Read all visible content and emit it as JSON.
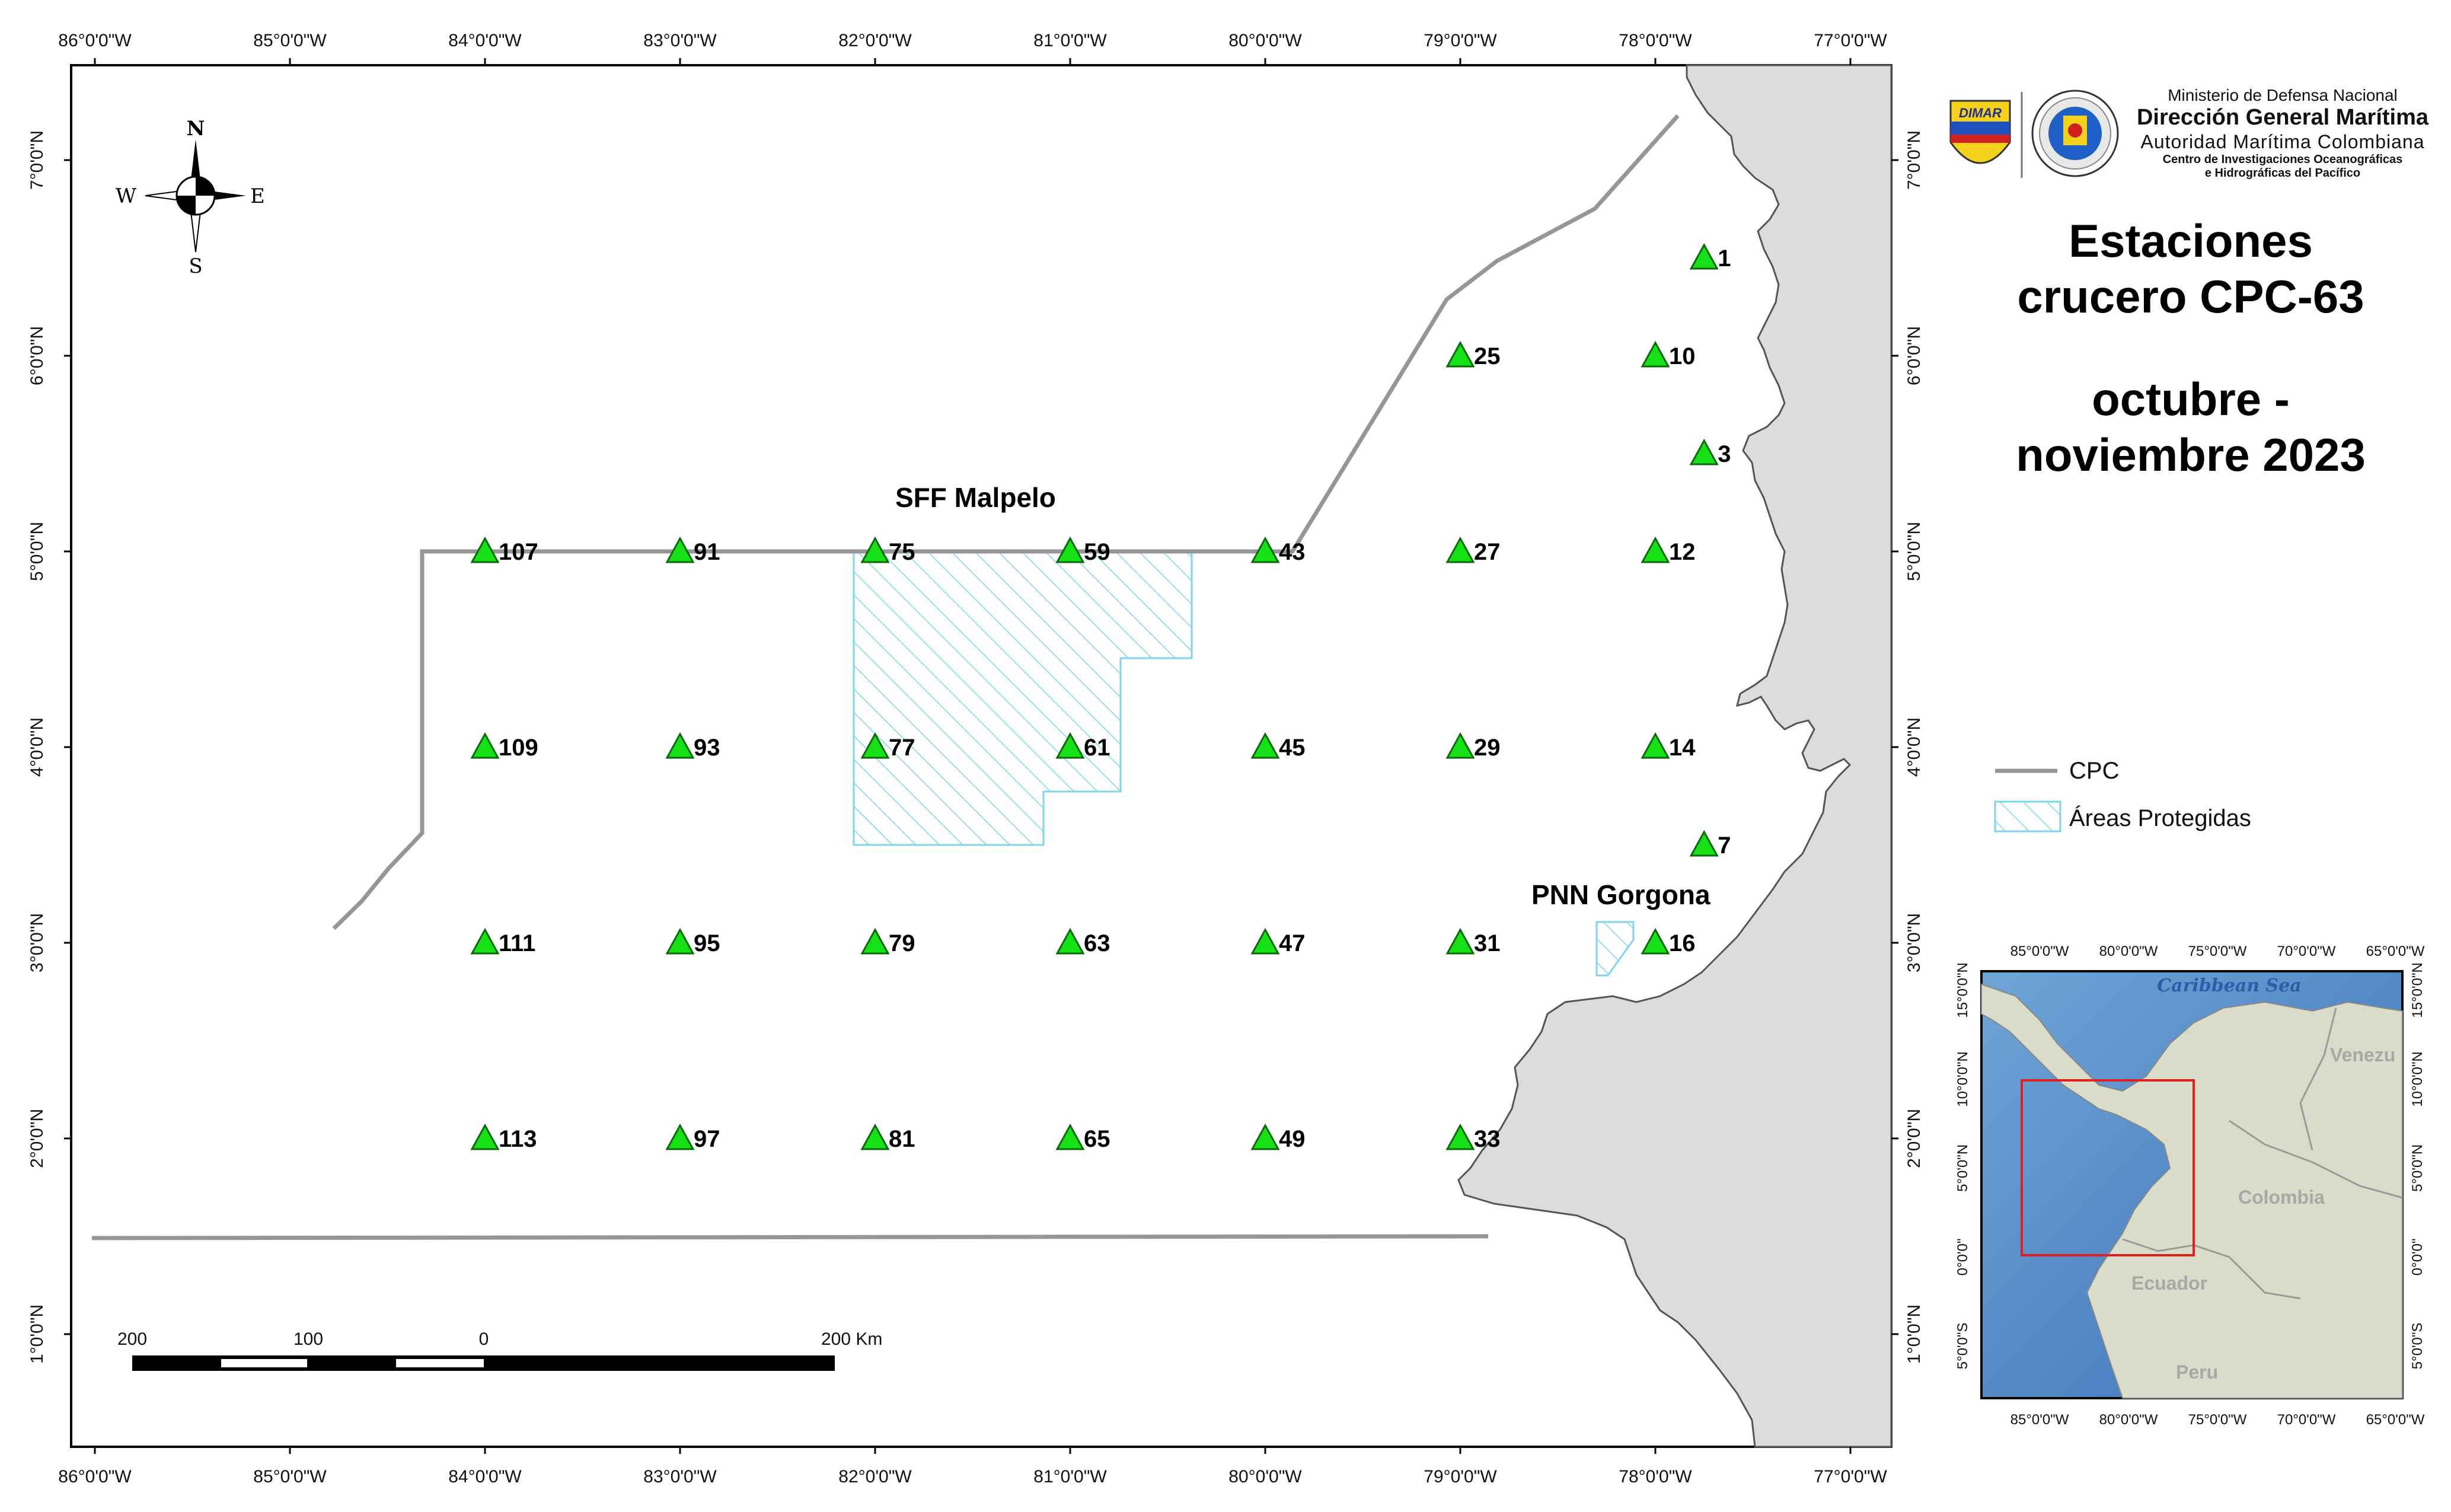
{
  "title": {
    "line1": "Estaciones",
    "line2": "crucero CPC-63",
    "line3": "octubre -",
    "line4": "noviembre 2023"
  },
  "institution": {
    "ministry": "Ministerio de Defensa Nacional",
    "name": "Dirección General Marítima",
    "authority": "Autoridad Marítima Colombiana",
    "center_line1": "Centro de Investigaciones Oceanográficas",
    "center_line2": "e Hidrográficas del Pacífico",
    "logo_left_text": "DIMAR"
  },
  "legend": {
    "cpc_label": "CPC",
    "protected_label": "Áreas Protegidas"
  },
  "compass": {
    "n": "N",
    "s": "S",
    "e": "E",
    "w": "W"
  },
  "scale_bar": {
    "labels": [
      "200",
      "100",
      "0",
      "200 Km"
    ]
  },
  "area_labels": {
    "malpelo": "SFF Malpelo",
    "gorgona": "PNN Gorgona"
  },
  "lon_ticks": [
    "86°0'0\"W",
    "85°0'0\"W",
    "84°0'0\"W",
    "83°0'0\"W",
    "82°0'0\"W",
    "81°0'0\"W",
    "80°0'0\"W",
    "79°0'0\"W",
    "78°0'0\"W",
    "77°0'0\"W"
  ],
  "lat_ticks": [
    "7°0'0\"N",
    "6°0'0\"N",
    "5°0'0\"N",
    "4°0'0\"N",
    "3°0'0\"N",
    "2°0'0\"N",
    "1°0'0\"N"
  ],
  "stations": [
    {
      "id": "1",
      "lon": -77.75,
      "lat": 6.5
    },
    {
      "id": "25",
      "lon": -79.0,
      "lat": 6.0
    },
    {
      "id": "10",
      "lon": -78.0,
      "lat": 6.0
    },
    {
      "id": "3",
      "lon": -77.75,
      "lat": 5.5
    },
    {
      "id": "107",
      "lon": -84.0,
      "lat": 5.0
    },
    {
      "id": "91",
      "lon": -83.0,
      "lat": 5.0
    },
    {
      "id": "75",
      "lon": -82.0,
      "lat": 5.0
    },
    {
      "id": "59",
      "lon": -81.0,
      "lat": 5.0
    },
    {
      "id": "43",
      "lon": -80.0,
      "lat": 5.0
    },
    {
      "id": "27",
      "lon": -79.0,
      "lat": 5.0
    },
    {
      "id": "12",
      "lon": -78.0,
      "lat": 5.0
    },
    {
      "id": "109",
      "lon": -84.0,
      "lat": 4.0
    },
    {
      "id": "93",
      "lon": -83.0,
      "lat": 4.0
    },
    {
      "id": "77",
      "lon": -82.0,
      "lat": 4.0
    },
    {
      "id": "61",
      "lon": -81.0,
      "lat": 4.0
    },
    {
      "id": "45",
      "lon": -80.0,
      "lat": 4.0
    },
    {
      "id": "29",
      "lon": -79.0,
      "lat": 4.0
    },
    {
      "id": "14",
      "lon": -78.0,
      "lat": 4.0
    },
    {
      "id": "7",
      "lon": -77.75,
      "lat": 3.5
    },
    {
      "id": "111",
      "lon": -84.0,
      "lat": 3.0
    },
    {
      "id": "95",
      "lon": -83.0,
      "lat": 3.0
    },
    {
      "id": "79",
      "lon": -82.0,
      "lat": 3.0
    },
    {
      "id": "63",
      "lon": -81.0,
      "lat": 3.0
    },
    {
      "id": "47",
      "lon": -80.0,
      "lat": 3.0
    },
    {
      "id": "31",
      "lon": -79.0,
      "lat": 3.0
    },
    {
      "id": "16",
      "lon": -78.0,
      "lat": 3.0
    },
    {
      "id": "113",
      "lon": -84.0,
      "lat": 2.0
    },
    {
      "id": "97",
      "lon": -83.0,
      "lat": 2.0
    },
    {
      "id": "81",
      "lon": -82.0,
      "lat": 2.0
    },
    {
      "id": "65",
      "lon": -81.0,
      "lat": 2.0
    },
    {
      "id": "49",
      "lon": -80.0,
      "lat": 2.0
    },
    {
      "id": "33",
      "lon": -79.0,
      "lat": 2.0
    }
  ],
  "inset": {
    "lon_ticks": [
      "85°0'0\"W",
      "80°0'0\"W",
      "75°0'0\"W",
      "70°0'0\"W",
      "65°0'0\"W"
    ],
    "lat_ticks": [
      "15°0'0\"N",
      "10°0'0\"N",
      "5°0'0\"N",
      "0°0'0\"",
      "5°0'0\"S"
    ],
    "labels": {
      "sea": "Caribbean Sea",
      "venezuela": "Venezu",
      "colombia": "Colombia",
      "ecuador": "Ecuador",
      "peru": "Peru"
    }
  },
  "colors": {
    "station": "#16e016",
    "cpc_line": "#969696",
    "land": "#dcdcdc",
    "protected": "#7fd6ea",
    "inset_box": "#e02020"
  }
}
